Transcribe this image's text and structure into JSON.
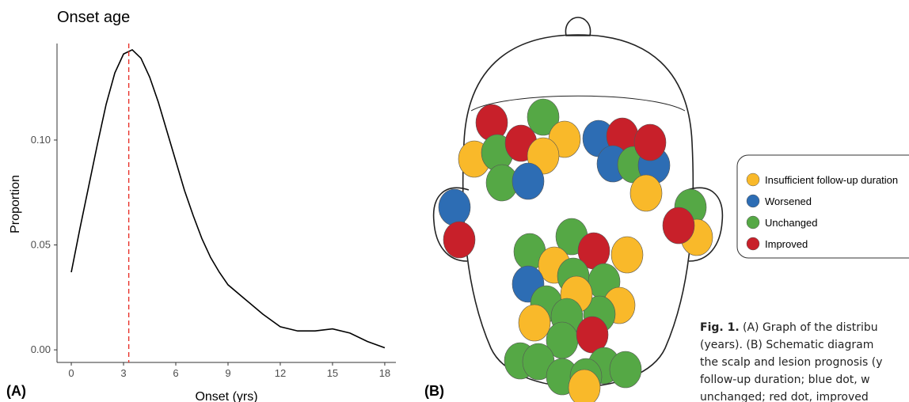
{
  "chart_data": {
    "type": "line",
    "title": "Onset age",
    "x_label": "Onset (yrs)",
    "y_label": "Proportion",
    "x": [
      0,
      0.5,
      1,
      1.5,
      2,
      2.5,
      3,
      3.5,
      4,
      4.5,
      5,
      5.5,
      6,
      6.5,
      7,
      7.5,
      8,
      8.5,
      9,
      10,
      11,
      12,
      13,
      14,
      15,
      16,
      17,
      18
    ],
    "values": [
      0.037,
      0.058,
      0.078,
      0.098,
      0.117,
      0.132,
      0.141,
      0.143,
      0.139,
      0.13,
      0.118,
      0.104,
      0.09,
      0.076,
      0.064,
      0.053,
      0.044,
      0.037,
      0.031,
      0.024,
      0.017,
      0.011,
      0.009,
      0.009,
      0.01,
      0.008,
      0.004,
      0.001
    ],
    "color": "#000000",
    "vline": 3.3,
    "vline_color": "#e8312a",
    "xlim": [
      -0.82,
      18.64
    ],
    "ylim": [
      -0.006,
      0.146
    ],
    "xticks": [
      0,
      3,
      6,
      9,
      12,
      15,
      18
    ],
    "yticks": [
      {
        "value": 0,
        "label": "0.00"
      },
      0.05,
      {
        "value": 0.1,
        "label": "0.10"
      }
    ]
  },
  "panel_labels": [
    "(A)",
    "(B)"
  ],
  "legend": [
    {
      "name": "Insufficient follow-up duration",
      "color": "#f9b92a"
    },
    {
      "name": "Worsened",
      "color": "#2d6db4"
    },
    {
      "name": "Unchanged",
      "color": "#55a845"
    },
    {
      "name": "Improved",
      "color": "#c8202a"
    }
  ],
  "caption": {
    "label": "Fig. 1.",
    "lines": [
      "(A) Graph of the distribu",
      "(years). (B) Schematic diagram",
      "the scalp and lesion prognosis (y",
      "follow-up duration; blue dot, w",
      "unchanged; red dot, improved"
    ]
  }
}
